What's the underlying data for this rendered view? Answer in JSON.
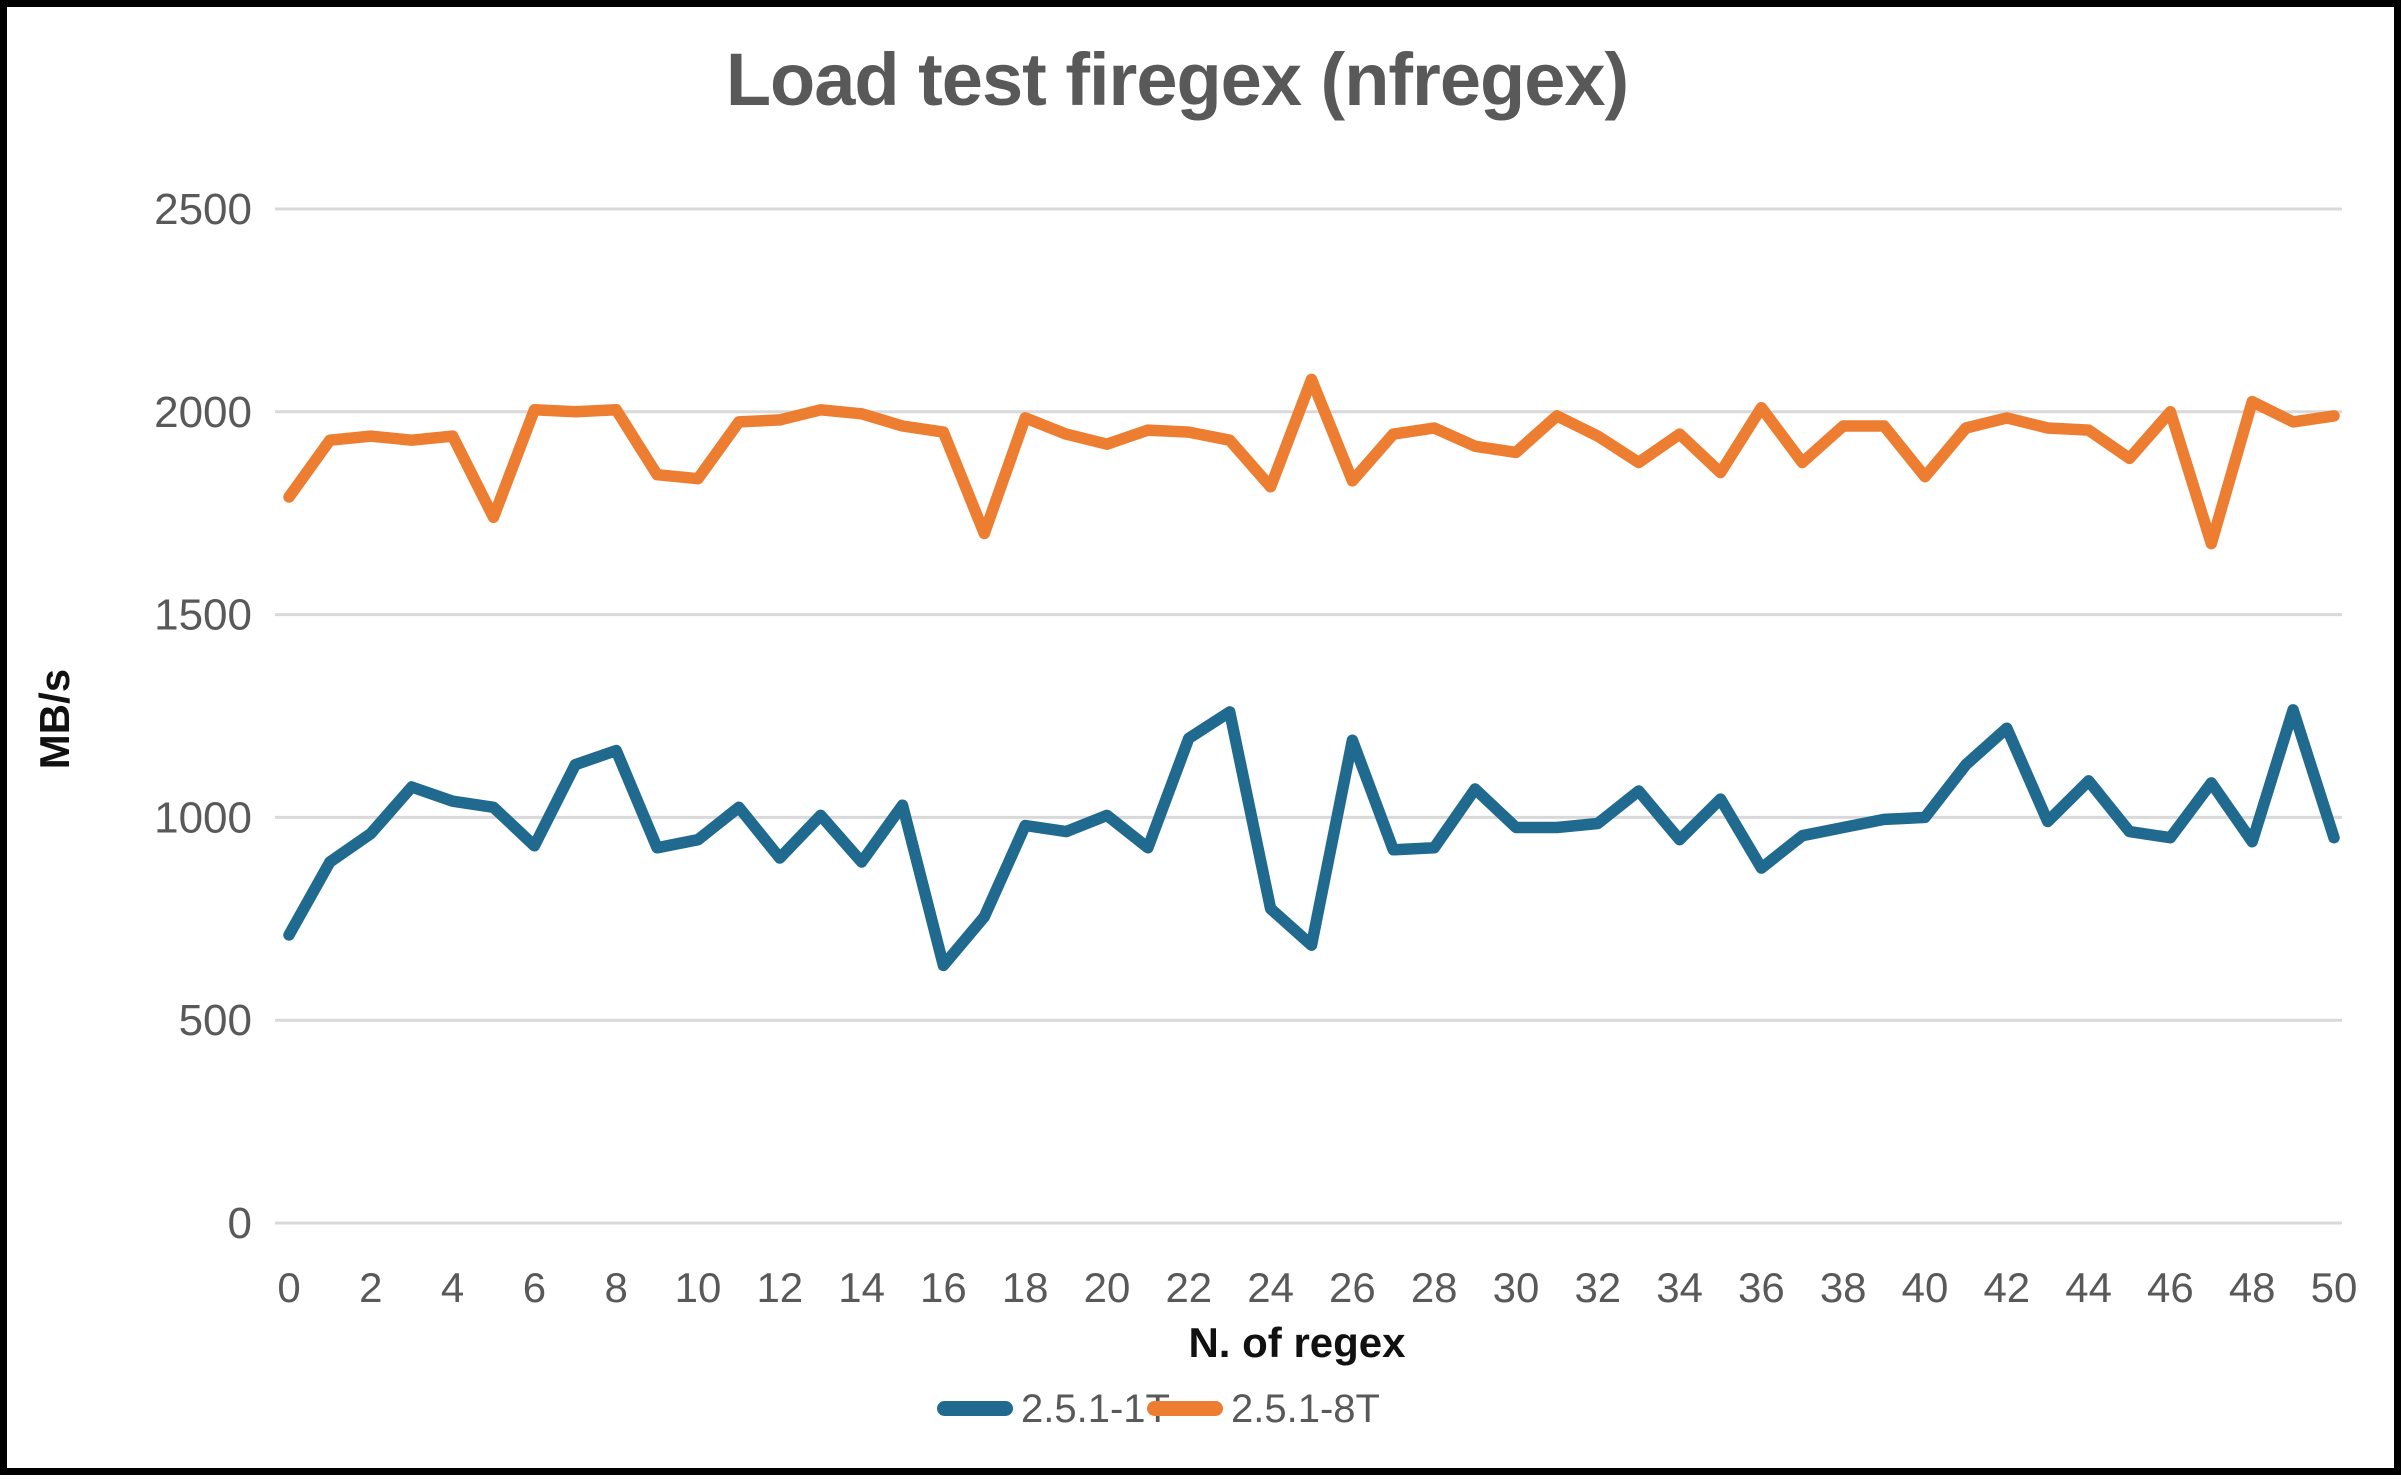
{
  "chart_data": {
    "type": "line",
    "title": "Load test firegex (nfregex)",
    "xlabel": "N. of regex",
    "ylabel": "MB/s",
    "x": [
      0,
      1,
      2,
      3,
      4,
      5,
      6,
      7,
      8,
      9,
      10,
      11,
      12,
      13,
      14,
      15,
      16,
      17,
      18,
      19,
      20,
      21,
      22,
      23,
      24,
      25,
      26,
      27,
      28,
      29,
      30,
      31,
      32,
      33,
      34,
      35,
      36,
      37,
      38,
      39,
      40,
      41,
      42,
      43,
      44,
      45,
      46,
      47,
      48,
      49,
      50
    ],
    "series": [
      {
        "name": "2.5.1-1T",
        "color": "#1f6a8e",
        "values": [
          710,
          890,
          960,
          1075,
          1040,
          1025,
          930,
          1130,
          1165,
          925,
          945,
          1025,
          900,
          1005,
          890,
          1030,
          635,
          755,
          980,
          965,
          1005,
          925,
          1195,
          1260,
          775,
          685,
          1190,
          920,
          925,
          1070,
          975,
          975,
          985,
          1065,
          945,
          1045,
          875,
          955,
          975,
          995,
          1000,
          1130,
          1220,
          990,
          1090,
          965,
          950,
          1085,
          940,
          1265,
          950
        ]
      },
      {
        "name": "2.5.1-8T",
        "color": "#ed7d31",
        "values": [
          1790,
          1930,
          1940,
          1930,
          1940,
          1740,
          2005,
          2000,
          2005,
          1845,
          1835,
          1975,
          1980,
          2005,
          1995,
          1965,
          1950,
          1700,
          1985,
          1945,
          1920,
          1955,
          1950,
          1930,
          1815,
          2080,
          1830,
          1945,
          1960,
          1915,
          1900,
          1990,
          1940,
          1875,
          1945,
          1850,
          2010,
          1875,
          1965,
          1965,
          1840,
          1960,
          1985,
          1960,
          1955,
          1885,
          2000,
          1675,
          2025,
          1975,
          1990
        ]
      }
    ],
    "ylim": [
      0,
      2500
    ],
    "yticks": [
      0,
      500,
      1000,
      1500,
      2000,
      2500
    ],
    "xticks": [
      0,
      2,
      4,
      6,
      8,
      10,
      12,
      14,
      16,
      18,
      20,
      22,
      24,
      26,
      28,
      30,
      32,
      34,
      36,
      38,
      40,
      42,
      44,
      46,
      48,
      50
    ],
    "grid": "horizontal",
    "legend_position": "bottom"
  },
  "styles": {
    "title_color": "#595959",
    "tick_color": "#595959",
    "axis_title_color": "#111111",
    "grid_color": "#d9d9d9",
    "border_color": "#000000",
    "background": "#ffffff"
  }
}
